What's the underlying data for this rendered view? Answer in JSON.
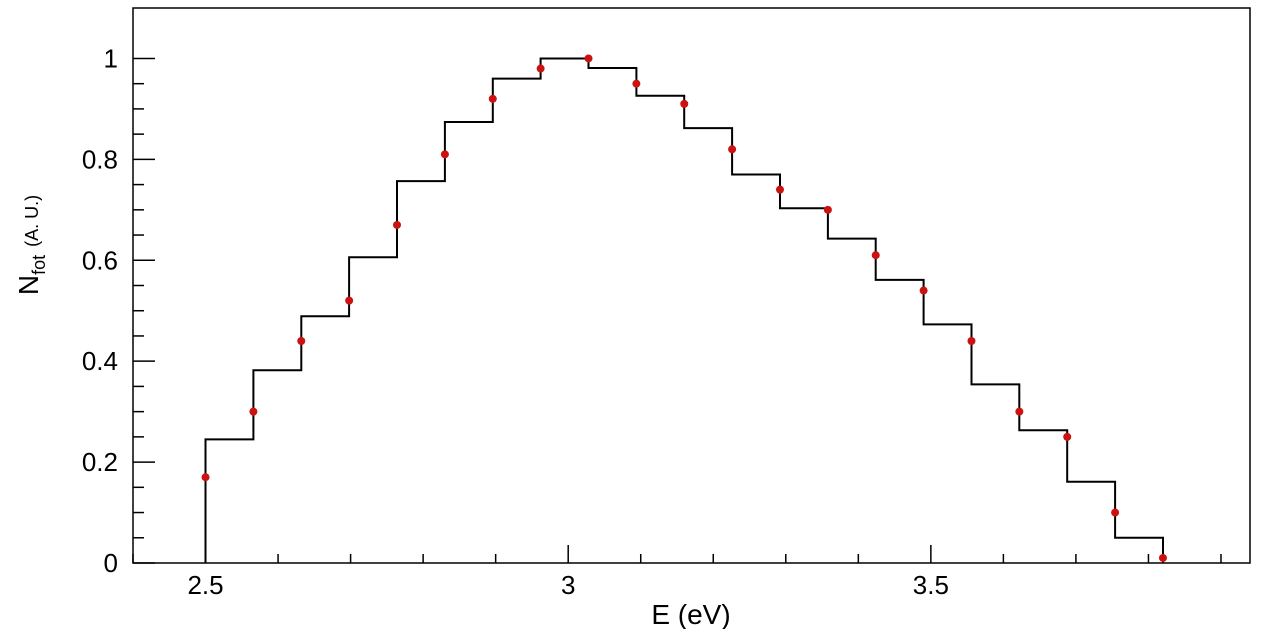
{
  "chart_data": {
    "type": "line",
    "step_histogram": {
      "name": "",
      "color": "#000000",
      "bin_edges": [
        2.5,
        2.566,
        2.632,
        2.698,
        2.764,
        2.83,
        2.896,
        2.962,
        3.028,
        3.094,
        3.16,
        3.226,
        3.292,
        3.358,
        3.424,
        3.49,
        3.556,
        3.622,
        3.688,
        3.754,
        3.82
      ],
      "values": [
        0.245,
        0.382,
        0.489,
        0.606,
        0.757,
        0.874,
        0.96,
        1.0,
        0.981,
        0.926,
        0.862,
        0.77,
        0.703,
        0.643,
        0.561,
        0.473,
        0.354,
        0.263,
        0.161,
        0.05
      ]
    },
    "points": {
      "name": "",
      "color": "#cc1111",
      "x": [
        2.5,
        2.566,
        2.632,
        2.698,
        2.764,
        2.83,
        2.896,
        2.962,
        3.028,
        3.094,
        3.16,
        3.226,
        3.292,
        3.358,
        3.424,
        3.49,
        3.556,
        3.622,
        3.688,
        3.754,
        3.82
      ],
      "y": [
        0.17,
        0.3,
        0.44,
        0.52,
        0.67,
        0.81,
        0.92,
        0.98,
        1.0,
        0.95,
        0.91,
        0.82,
        0.74,
        0.7,
        0.61,
        0.54,
        0.44,
        0.3,
        0.25,
        0.1,
        0.01
      ]
    },
    "xlabel": "E (eV)",
    "ylabel": {
      "main": "N",
      "subscript": "fot",
      "unit": "(A. U.)"
    },
    "xlim": [
      2.4,
      3.94
    ],
    "ylim": [
      0,
      1.1
    ],
    "xticks": [
      2.5,
      3,
      3.5
    ],
    "xtick_labels": [
      "2.5",
      "3",
      "3.5"
    ],
    "yticks": [
      0,
      0.2,
      0.4,
      0.6,
      0.8,
      1
    ],
    "ytick_labels": [
      "0",
      "0.2",
      "0.4",
      "0.6",
      "0.8",
      "1"
    ],
    "grid": false
  }
}
